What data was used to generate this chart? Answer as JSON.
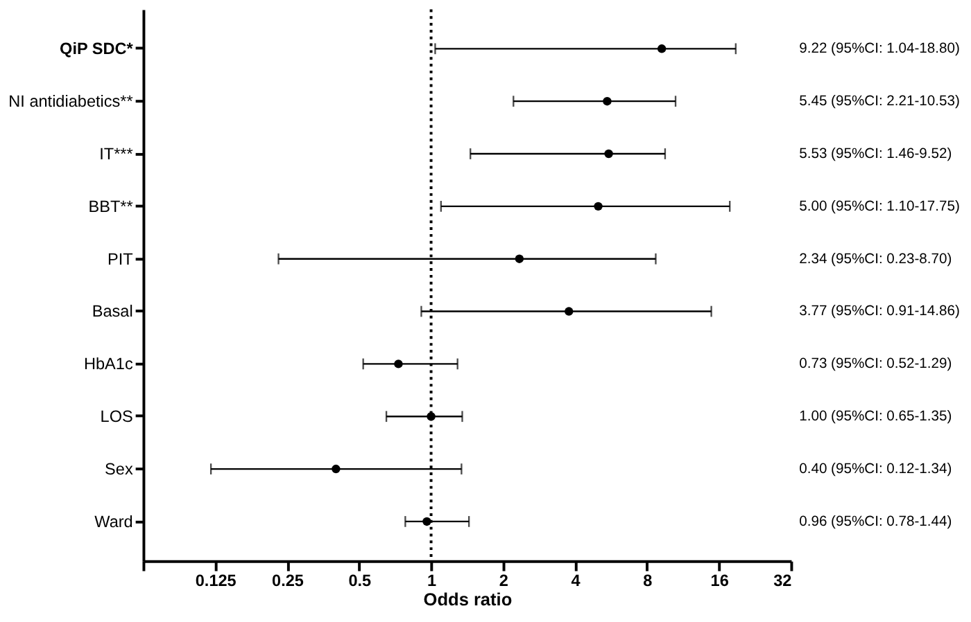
{
  "chart_data": {
    "type": "scatter",
    "xlabel": "Odds ratio",
    "categories": [
      "QiP SDC*",
      "NI antidiabetics**",
      "IT***",
      "BBT**",
      "PIT",
      "Basal",
      "HbA1c",
      "LOS",
      "Sex",
      "Ward"
    ],
    "values": [
      9.22,
      5.45,
      5.53,
      5.0,
      2.34,
      3.77,
      0.73,
      1.0,
      0.4,
      0.96
    ],
    "errors": [
      [
        1.04,
        18.8
      ],
      [
        2.21,
        10.53
      ],
      [
        1.46,
        9.52
      ],
      [
        1.1,
        17.75
      ],
      [
        0.23,
        8.7
      ],
      [
        0.91,
        14.86
      ],
      [
        0.52,
        1.29
      ],
      [
        0.65,
        1.35
      ],
      [
        0.12,
        1.34
      ],
      [
        0.78,
        1.44
      ]
    ],
    "annotations": [
      "9.22 (95%CI: 1.04-18.80)",
      "5.45 (95%CI: 2.21-10.53)",
      "5.53 (95%CI: 1.46-9.52)",
      "5.00 (95%CI: 1.10-17.75)",
      "2.34 (95%CI: 0.23-8.70)",
      "3.77  (95%CI: 0.91-14.86)",
      "0.73 (95%CI: 0.52-1.29)",
      "1.00 (95%CI: 0.65-1.35)",
      "0.40 (95%CI: 0.12-1.34)",
      "0.96 (95%CI: 0.78-1.44)"
    ],
    "color": "#000000",
    "marker": "circle",
    "log": "x",
    "xlim": [
      0.0625,
      32
    ],
    "orientation": "horizontal",
    "xticks": [
      {
        "value": 0.0625,
        "label": null
      },
      0.125,
      0.25,
      0.5,
      1,
      2,
      4,
      8,
      16,
      32
    ],
    "ref_lines": [
      {
        "axis": "x",
        "value": 1,
        "line_style": "dotted",
        "color": "#000000"
      }
    ],
    "grid": false,
    "legend": false
  }
}
